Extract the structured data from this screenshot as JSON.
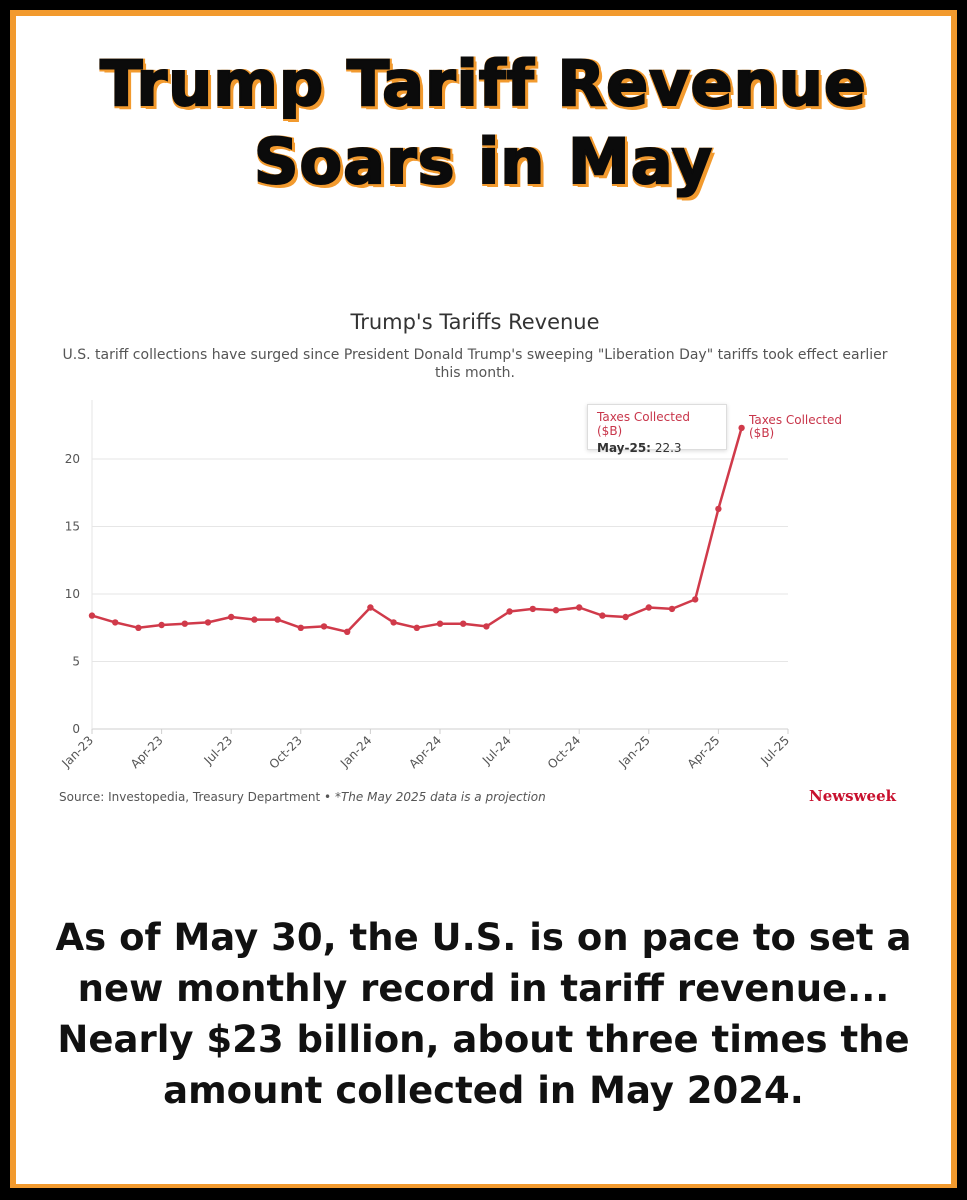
{
  "headline": {
    "line1": "Trump Tariff Revenue",
    "line2": "Soars in May"
  },
  "chart_data": {
    "type": "line",
    "title": "Trump's Tariffs Revenue",
    "subtitle": "U.S. tariff collections have surged since President Donald Trump's sweeping \"Liberation Day\" tariffs took effect earlier this month.",
    "series_name": "Taxes Collected ($B)",
    "series_color": "#d03a4a",
    "ylim": [
      0,
      25
    ],
    "yticks": [
      0,
      5,
      10,
      15,
      20
    ],
    "xticks": [
      "Jan-23",
      "Apr-23",
      "Jul-23",
      "Oct-23",
      "Jan-24",
      "Apr-24",
      "Jul-24",
      "Oct-24",
      "Jan-25",
      "Apr-25",
      "Jul-25"
    ],
    "x": [
      "Jan-23",
      "Feb-23",
      "Mar-23",
      "Apr-23",
      "May-23",
      "Jun-23",
      "Jul-23",
      "Aug-23",
      "Sep-23",
      "Oct-23",
      "Nov-23",
      "Dec-23",
      "Jan-24",
      "Feb-24",
      "Mar-24",
      "Apr-24",
      "May-24",
      "Jun-24",
      "Jul-24",
      "Aug-24",
      "Sep-24",
      "Oct-24",
      "Nov-24",
      "Dec-24",
      "Jan-25",
      "Feb-25",
      "Mar-25",
      "Apr-25",
      "May-25"
    ],
    "values": [
      8.4,
      7.9,
      7.5,
      7.7,
      7.8,
      7.9,
      8.3,
      8.1,
      8.1,
      7.5,
      7.6,
      7.2,
      9.0,
      7.9,
      7.5,
      7.8,
      7.8,
      7.6,
      8.7,
      8.9,
      8.8,
      9.0,
      8.4,
      8.3,
      9.0,
      8.9,
      9.6,
      16.3,
      22.3
    ],
    "tooltip": {
      "series": "Taxes Collected ($B)",
      "label": "May-25:",
      "value": "22.3"
    },
    "series_label_line1": "Taxes Collected",
    "series_label_line2": "($B)",
    "grid": true
  },
  "source": {
    "text": "Source: Investopedia, Treasury Department •",
    "note": "*The May 2025 data is a projection"
  },
  "brand": "Newsweek",
  "footer": {
    "line1": "As of May 30, the U.S. is on pace to set a",
    "line2": "new monthly record in tariff revenue...",
    "line3": "Nearly $23 billion, about three times the",
    "line4": "amount collected in May 2024."
  },
  "colors": {
    "frame": "#f29a2e",
    "background": "#000000",
    "card": "#ffffff"
  }
}
